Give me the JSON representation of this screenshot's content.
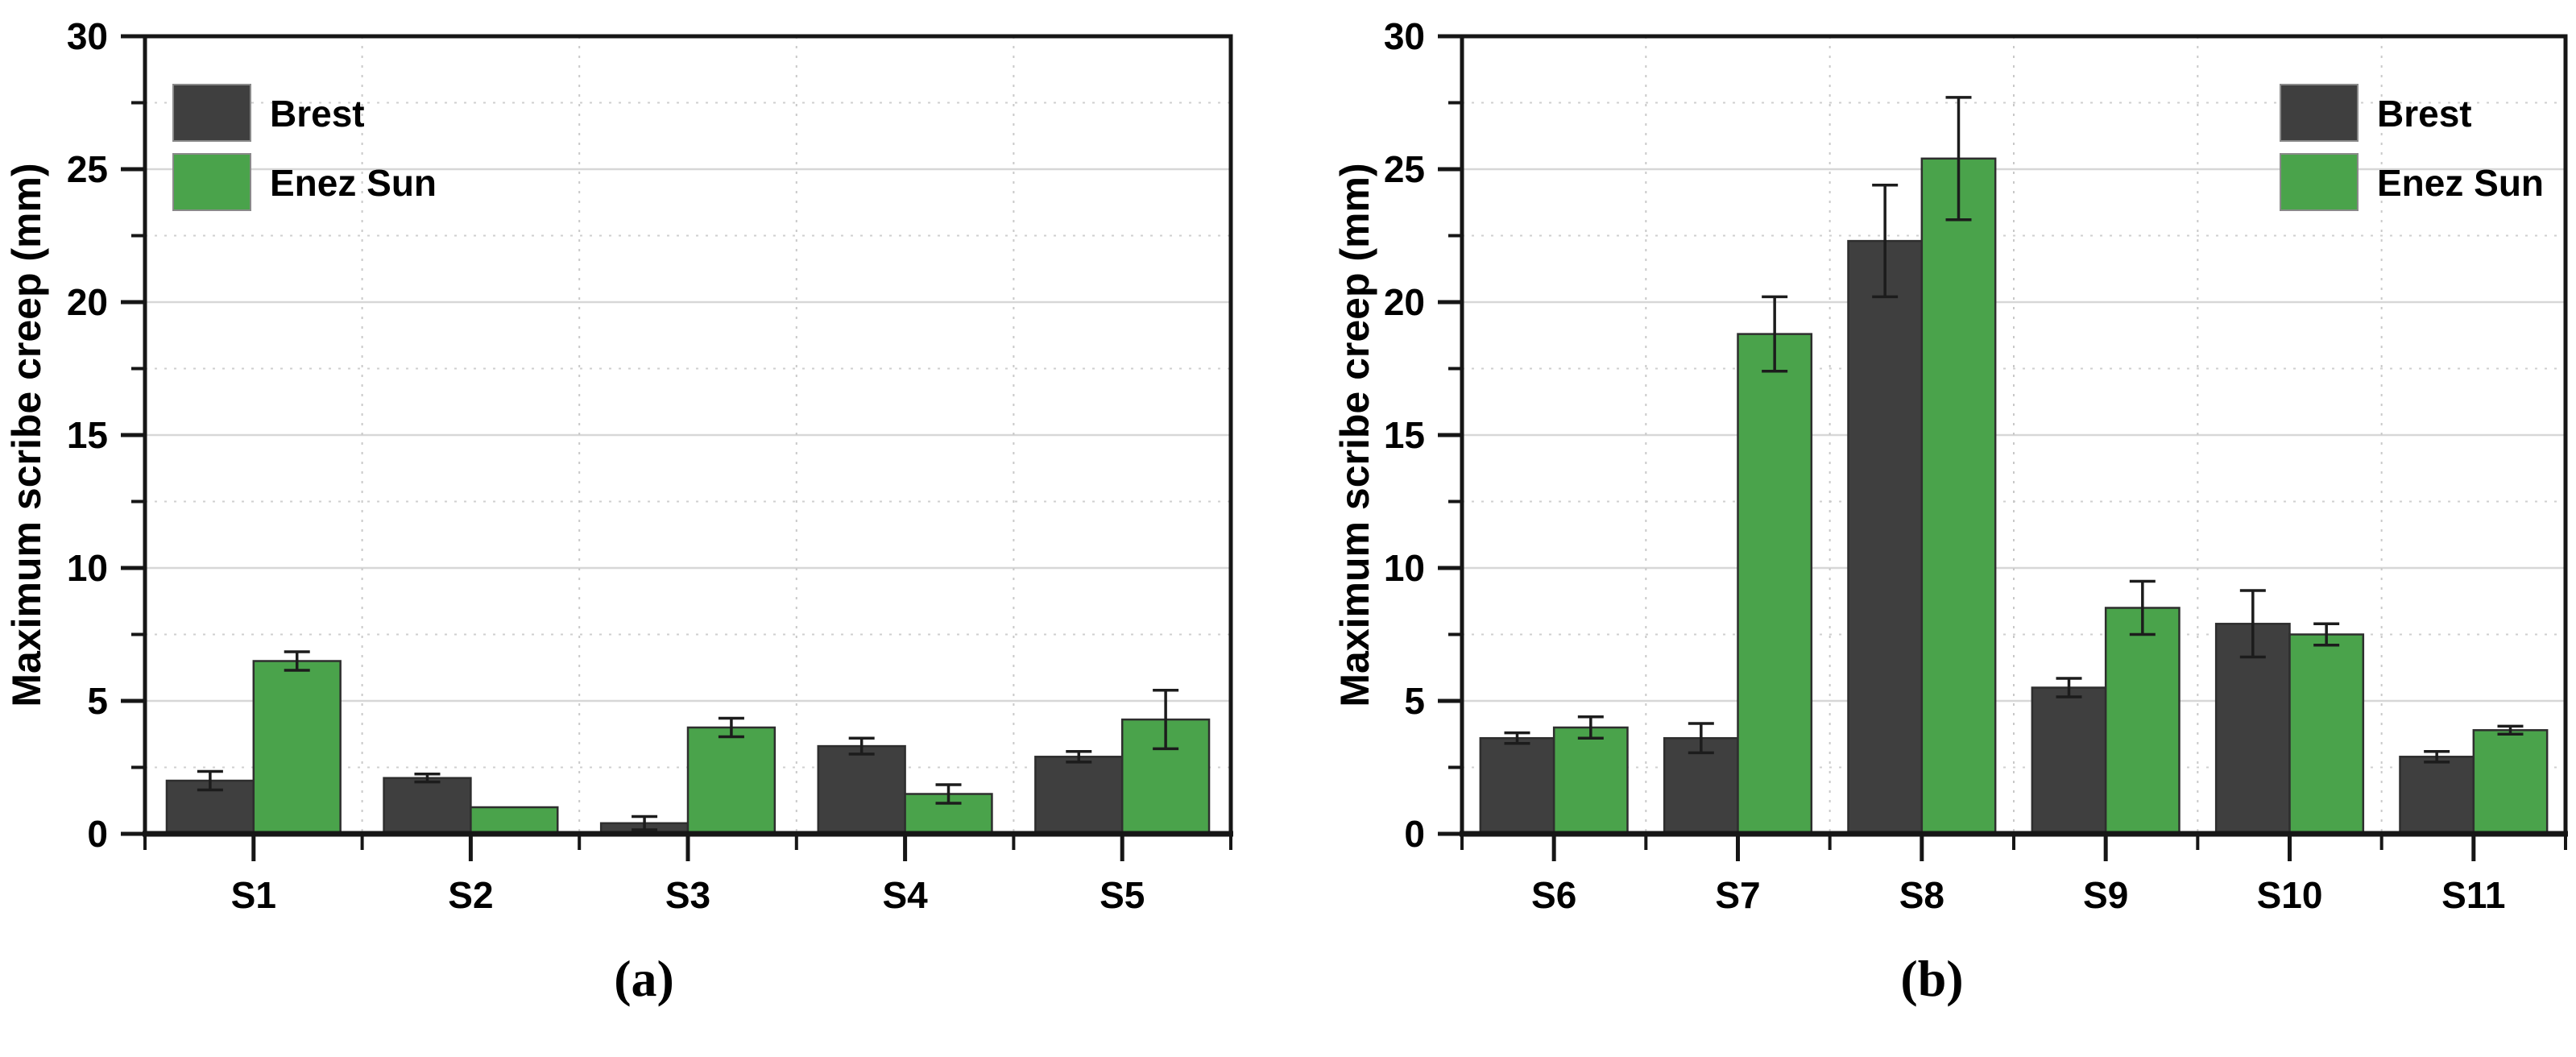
{
  "figure": {
    "background": "#ffffff",
    "description": "Two grouped bar charts comparing maximum scribe creep at two exposure sites",
    "series_names": [
      "Brest",
      "Enez Sun"
    ],
    "series_colors": [
      "#3f3f3f",
      "#4aa34b"
    ]
  },
  "chart_data": [
    {
      "type": "bar",
      "panel_label": "(a)",
      "title": "",
      "xlabel": "",
      "ylabel": "Maximum scribe creep (mm)",
      "ylim": [
        0,
        30
      ],
      "ytick_step": 5,
      "minor_tick_step": 2.5,
      "yticks": [
        "0",
        "5",
        "10",
        "15",
        "20",
        "25",
        "30"
      ],
      "grid": "horizontal major solid, horizontal minor dotted, vertical category-boundary dashed",
      "legend_position": "top-left",
      "categories": [
        "S1",
        "S2",
        "S3",
        "S4",
        "S5"
      ],
      "series": [
        {
          "name": "Brest",
          "color": "#3f3f3f",
          "values": [
            2.0,
            2.1,
            0.4,
            3.3,
            2.9
          ],
          "errors": [
            0.35,
            0.15,
            0.25,
            0.3,
            0.2
          ]
        },
        {
          "name": "Enez Sun",
          "color": "#4aa34b",
          "values": [
            6.5,
            1.0,
            4.0,
            1.5,
            4.3
          ],
          "errors": [
            0.35,
            0,
            0.35,
            0.35,
            1.1
          ]
        }
      ]
    },
    {
      "type": "bar",
      "panel_label": "(b)",
      "title": "",
      "xlabel": "",
      "ylabel": "Maximum scribe creep (mm)",
      "ylim": [
        0,
        30
      ],
      "ytick_step": 5,
      "minor_tick_step": 2.5,
      "yticks": [
        "0",
        "5",
        "10",
        "15",
        "20",
        "25",
        "30"
      ],
      "grid": "horizontal major solid, horizontal minor dotted, vertical category-boundary dashed",
      "legend_position": "top-right",
      "categories": [
        "S6",
        "S7",
        "S8",
        "S9",
        "S10",
        "S11"
      ],
      "series": [
        {
          "name": "Brest",
          "color": "#3f3f3f",
          "values": [
            3.6,
            3.6,
            22.3,
            5.5,
            7.9,
            2.9
          ],
          "errors": [
            0.2,
            0.55,
            2.1,
            0.35,
            1.25,
            0.2
          ]
        },
        {
          "name": "Enez Sun",
          "color": "#4aa34b",
          "values": [
            4.0,
            18.8,
            25.4,
            8.5,
            7.5,
            3.9
          ],
          "errors": [
            0.4,
            1.4,
            2.3,
            1.0,
            0.4,
            0.15
          ]
        }
      ]
    }
  ],
  "style_colors": {
    "frame": "#161616",
    "tick": "#161616",
    "text": "#000000",
    "grid_major": "#d7d7d7",
    "grid_minor": "#cfcfcf",
    "grid_vertical": "#c9c9c9",
    "error_bar": "#1c1c1c",
    "bar_outline": "#2e2e2e",
    "legend_swatch_border": "#8a8a8a"
  }
}
